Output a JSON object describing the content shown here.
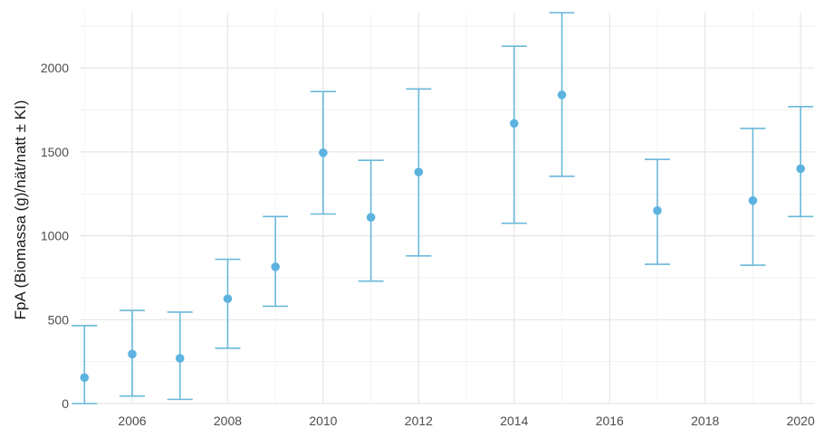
{
  "chart_data": {
    "type": "scatter",
    "title": "",
    "xlabel": "",
    "ylabel": "FpA (Biomassa (g)/nät/natt ± KI)",
    "xlim": [
      2004.9,
      2020.3
    ],
    "ylim": [
      0,
      2330
    ],
    "x_ticks": [
      2006,
      2008,
      2010,
      2012,
      2014,
      2016,
      2018,
      2020
    ],
    "x_tick_labels": [
      "2006",
      "2008",
      "2010",
      "2012",
      "2014",
      "2016",
      "2018",
      "2020"
    ],
    "y_ticks": [
      0,
      500,
      1000,
      1500,
      2000
    ],
    "y_tick_labels": [
      "0",
      "500",
      "1000",
      "1500",
      "2000"
    ],
    "grid": true,
    "legend": "none",
    "color": "#5cb3e0",
    "series": [
      {
        "points": [
          {
            "x": 2005,
            "y": 155,
            "lower": 0,
            "upper": 465
          },
          {
            "x": 2006,
            "y": 295,
            "lower": 45,
            "upper": 555
          },
          {
            "x": 2007,
            "y": 270,
            "lower": 25,
            "upper": 545
          },
          {
            "x": 2008,
            "y": 625,
            "lower": 330,
            "upper": 860
          },
          {
            "x": 2009,
            "y": 815,
            "lower": 580,
            "upper": 1115
          },
          {
            "x": 2010,
            "y": 1495,
            "lower": 1130,
            "upper": 1860
          },
          {
            "x": 2011,
            "y": 1110,
            "lower": 730,
            "upper": 1450
          },
          {
            "x": 2012,
            "y": 1380,
            "lower": 880,
            "upper": 1875
          },
          {
            "x": 2014,
            "y": 1670,
            "lower": 1075,
            "upper": 2130
          },
          {
            "x": 2015,
            "y": 1840,
            "lower": 1355,
            "upper": 2330
          },
          {
            "x": 2017,
            "y": 1150,
            "lower": 830,
            "upper": 1455
          },
          {
            "x": 2019,
            "y": 1210,
            "lower": 825,
            "upper": 1640
          },
          {
            "x": 2020,
            "y": 1400,
            "lower": 1115,
            "upper": 1770
          }
        ]
      }
    ]
  }
}
